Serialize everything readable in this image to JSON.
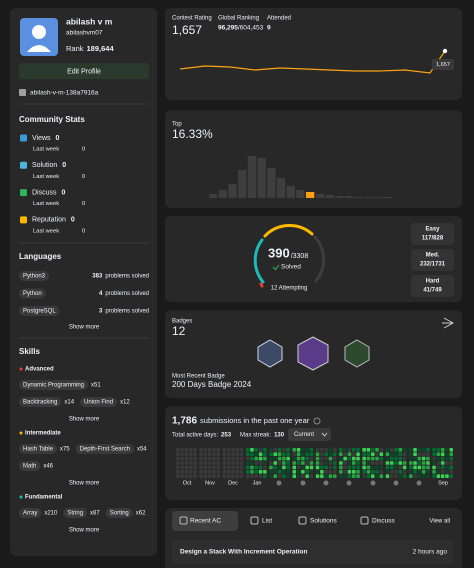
{
  "profile": {
    "name": "abilash v m",
    "username": "abilashvm07",
    "rank_label": "Rank",
    "rank": "189,644",
    "edit": "Edit Profile",
    "linkedin": "abilash-v-m-138a7916a"
  },
  "community_stats": {
    "title": "Community Stats",
    "items": [
      {
        "label": "Views",
        "value": "0",
        "sub_label": "Last week",
        "sub_value": "0",
        "color": "#3b9bd8"
      },
      {
        "label": "Solution",
        "value": "0",
        "sub_label": "Last week",
        "sub_value": "0",
        "color": "#4cb8d9"
      },
      {
        "label": "Discuss",
        "value": "0",
        "sub_label": "Last week",
        "sub_value": "0",
        "color": "#2db55d"
      },
      {
        "label": "Reputation",
        "value": "0",
        "sub_label": "Last week",
        "sub_value": "0",
        "color": "#ffb700"
      }
    ]
  },
  "languages": {
    "title": "Languages",
    "items": [
      {
        "name": "Python3",
        "count": "383",
        "unit": "problems solved"
      },
      {
        "name": "Python",
        "count": "4",
        "unit": "problems solved"
      },
      {
        "name": "PostgreSQL",
        "count": "3",
        "unit": "problems solved"
      }
    ],
    "show_more": "Show more"
  },
  "skills": {
    "title": "Skills",
    "groups": [
      {
        "name": "Advanced",
        "color": "#f63737",
        "tags": [
          {
            "name": "Dynamic Programming",
            "count": "x51"
          },
          {
            "name": "Backtracking",
            "count": "x14"
          },
          {
            "name": "Union Find",
            "count": "x12"
          }
        ],
        "show_more": "Show more"
      },
      {
        "name": "Intermediate",
        "color": "#ffb700",
        "tags": [
          {
            "name": "Hash Table",
            "count": "x75"
          },
          {
            "name": "Depth-First Search",
            "count": "x54"
          },
          {
            "name": "Math",
            "count": "x46"
          }
        ],
        "show_more": "Show more"
      },
      {
        "name": "Fundamental",
        "color": "#1cbaba",
        "tags": [
          {
            "name": "Array",
            "count": "x210"
          },
          {
            "name": "String",
            "count": "x87"
          },
          {
            "name": "Sorting",
            "count": "x62"
          }
        ],
        "show_more": "Show more"
      }
    ]
  },
  "contest": {
    "rating_label": "Contest Rating",
    "rating": "1,657",
    "ranking_label": "Global Ranking",
    "ranking": "96,295",
    "ranking_total": "/604,453",
    "attended_label": "Attended",
    "attended": "9",
    "marker": "1,657"
  },
  "top": {
    "label": "Top",
    "value": "16.33%"
  },
  "solved": {
    "solved": "390",
    "total": "/3308",
    "label": "Solved",
    "attempting": "12 Attempting",
    "levels": [
      {
        "name": "Easy",
        "value": "117/828",
        "color": "#1cbaba"
      },
      {
        "name": "Med.",
        "value": "232/1731",
        "color": "#ffb700"
      },
      {
        "name": "Hard",
        "value": "41/749",
        "color": "#f63737"
      }
    ]
  },
  "badges": {
    "label": "Badges",
    "count": "12",
    "recent_label": "Most Recent Badge",
    "recent": "200 Days Badge 2024"
  },
  "submissions": {
    "count": "1,786",
    "text": "submissions in the past one year",
    "active_label": "Total active days:",
    "active": "253",
    "streak_label": "Max streak:",
    "streak": "130",
    "period": "Current",
    "months": [
      "Oct",
      "Nov",
      "Dec",
      "Jan",
      "Sep"
    ]
  },
  "recent": {
    "tabs": [
      "Recent AC",
      "List",
      "Solutions",
      "Discuss"
    ],
    "view_all": "View all",
    "items": [
      {
        "title": "Design a Stack With Increment Operation",
        "time": "2 hours ago"
      }
    ]
  }
}
